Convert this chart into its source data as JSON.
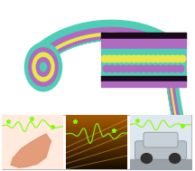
{
  "fig_width": 2.16,
  "fig_height": 1.89,
  "dpi": 100,
  "bg_color": "#ffffff",
  "teal": "#4ecfb5",
  "purple": "#b06abf",
  "yellow": "#e8e84a",
  "green_signal": "#7fff00"
}
